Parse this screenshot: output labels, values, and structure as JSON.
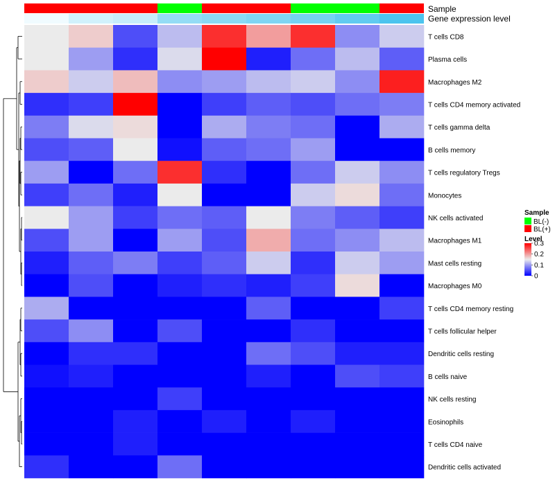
{
  "chart_data": {
    "type": "heatmap",
    "annotation_rows": [
      {
        "name": "Sample",
        "values": [
          "BL(+)",
          "BL(+)",
          "BL(+)",
          "BL(-)",
          "BL(+)",
          "BL(+)",
          "BL(-)",
          "BL(-)",
          "BL(+)"
        ]
      },
      {
        "name": "Gene expression level",
        "values": [
          0.1,
          0.13,
          0.14,
          0.19,
          0.2,
          0.21,
          0.22,
          0.24,
          0.26
        ]
      }
    ],
    "rows": [
      "T cells CD8",
      "Plasma cells",
      "Macrophages M2",
      "T cells CD4 memory activated",
      "T cells gamma delta",
      "B cells memory",
      "T cells regulatory  Tregs",
      "Monocytes",
      "NK cells activated",
      "Macrophages M1",
      "Mast cells resting",
      "Macrophages M0",
      "T cells CD4 memory resting",
      "T cells follicular helper",
      "Dendritic cells resting",
      "B cells naive",
      "NK cells resting",
      "Eosinophils",
      "T cells CD4 naive",
      "Dendritic cells activated"
    ],
    "values": [
      [
        0.15,
        0.17,
        0.05,
        0.12,
        0.27,
        0.2,
        0.27,
        0.09,
        0.13
      ],
      [
        0.15,
        0.1,
        0.03,
        0.14,
        0.3,
        0.02,
        0.07,
        0.12,
        0.06
      ],
      [
        0.17,
        0.13,
        0.18,
        0.09,
        0.1,
        0.12,
        0.13,
        0.09,
        0.28
      ],
      [
        0.03,
        0.04,
        0.3,
        0.0,
        0.04,
        0.06,
        0.05,
        0.07,
        0.08
      ],
      [
        0.08,
        0.14,
        0.16,
        0.0,
        0.11,
        0.08,
        0.07,
        0.0,
        0.11
      ],
      [
        0.05,
        0.06,
        0.15,
        0.01,
        0.06,
        0.07,
        0.1,
        0.0,
        0.0
      ],
      [
        0.1,
        0.0,
        0.07,
        0.27,
        0.03,
        0.0,
        0.07,
        0.13,
        0.09
      ],
      [
        0.04,
        0.07,
        0.02,
        0.15,
        0.0,
        0.0,
        0.13,
        0.16,
        0.07
      ],
      [
        0.15,
        0.1,
        0.04,
        0.07,
        0.06,
        0.15,
        0.08,
        0.06,
        0.04
      ],
      [
        0.05,
        0.1,
        0.0,
        0.1,
        0.05,
        0.19,
        0.07,
        0.09,
        0.12
      ],
      [
        0.02,
        0.06,
        0.08,
        0.04,
        0.06,
        0.13,
        0.03,
        0.13,
        0.1
      ],
      [
        0.0,
        0.05,
        0.0,
        0.02,
        0.03,
        0.02,
        0.04,
        0.16,
        0.0
      ],
      [
        0.11,
        0.0,
        0.0,
        0.0,
        0.0,
        0.06,
        0.0,
        0.0,
        0.04
      ],
      [
        0.05,
        0.09,
        0.0,
        0.05,
        0.0,
        0.0,
        0.03,
        0.0,
        0.0
      ],
      [
        0.0,
        0.03,
        0.03,
        0.0,
        0.0,
        0.07,
        0.05,
        0.02,
        0.02
      ],
      [
        0.01,
        0.02,
        0.0,
        0.0,
        0.0,
        0.02,
        0.0,
        0.05,
        0.04
      ],
      [
        0.0,
        0.0,
        0.0,
        0.04,
        0.0,
        0.0,
        0.0,
        0.0,
        0.0
      ],
      [
        0.0,
        0.0,
        0.02,
        0.0,
        0.02,
        0.0,
        0.02,
        0.0,
        0.0
      ],
      [
        0.0,
        0.0,
        0.02,
        0.0,
        0.0,
        0.0,
        0.0,
        0.0,
        0.0
      ],
      [
        0.03,
        0.0,
        0.0,
        0.07,
        0.0,
        0.0,
        0.0,
        0.0,
        0.0
      ]
    ],
    "color_scale": {
      "min": 0,
      "max": 0.3,
      "colors": [
        "#0000ff",
        "#ebebeb",
        "#ff0000"
      ]
    },
    "annotation_colors": {
      "BL(-)": "#00ff00",
      "BL(+)": "#ff0000",
      "expression_low": "#f0fbff",
      "expression_high": "#4cc4ee"
    },
    "legend": {
      "sample": {
        "title": "Sample",
        "entries": [
          "BL(-)",
          "BL(+)"
        ]
      },
      "level": {
        "title": "Level",
        "ticks": [
          0.3,
          0.2,
          0.1,
          0
        ],
        "tick_labels": [
          "0.3",
          "0.2",
          "0.1",
          "0"
        ]
      }
    },
    "legend_position": "right",
    "row_dendrogram": true,
    "grid": false
  }
}
